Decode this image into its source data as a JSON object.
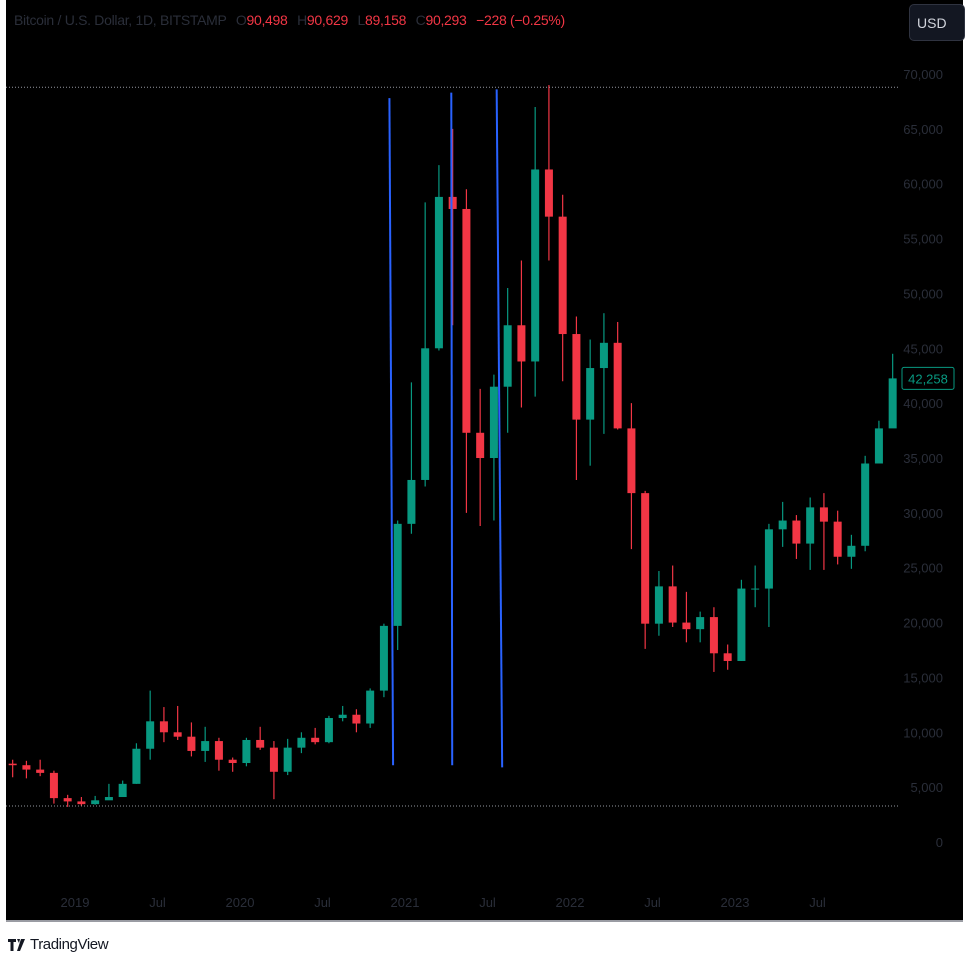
{
  "legend": {
    "symbol": "Bitcoin / U.S. Dollar, 1D, BITSTAMP",
    "o_label": "O",
    "open": "90,498",
    "h_label": "H",
    "high": "90,629",
    "l_label": "L",
    "low": "89,158",
    "c_label": "C",
    "close": "90,293",
    "change": "−228 (−0.25%)"
  },
  "currency_button": "USD",
  "brand": "TradingView",
  "colors": {
    "up": "#089981",
    "down": "#f23645",
    "drawing": "#2962ff",
    "background": "#000000"
  },
  "chart_data": {
    "type": "candlestick",
    "title": "Bitcoin / U.S. Dollar, 1D, BITSTAMP",
    "ylim": [
      0,
      70000
    ],
    "y_ticks": [
      "0",
      "5,000",
      "10,000",
      "15,000",
      "20,000",
      "25,000",
      "30,000",
      "35,000",
      "40,000",
      "45,000",
      "50,000",
      "55,000",
      "60,000",
      "65,000",
      "70,000"
    ],
    "x_ticks": [
      "2019",
      "Jul",
      "2020",
      "Jul",
      "2021",
      "Jul",
      "2022",
      "Jul",
      "2023",
      "Jul"
    ],
    "last_price": "42,258",
    "monthly_close": [
      [
        "2018-08",
        7000
      ],
      [
        "2018-09",
        6600
      ],
      [
        "2018-10",
        6300
      ],
      [
        "2018-11",
        4000
      ],
      [
        "2018-12",
        3700
      ],
      [
        "2019-01",
        3450
      ],
      [
        "2019-02",
        3800
      ],
      [
        "2019-03",
        4100
      ],
      [
        "2019-04",
        5300
      ],
      [
        "2019-05",
        8500
      ],
      [
        "2019-06",
        11000
      ],
      [
        "2019-07",
        10000
      ],
      [
        "2019-08",
        9600
      ],
      [
        "2019-09",
        8300
      ],
      [
        "2019-10",
        9200
      ],
      [
        "2019-11",
        7500
      ],
      [
        "2019-12",
        7200
      ],
      [
        "2020-01",
        9300
      ],
      [
        "2020-02",
        8600
      ],
      [
        "2020-03",
        6400
      ],
      [
        "2020-04",
        8600
      ],
      [
        "2020-05",
        9500
      ],
      [
        "2020-06",
        9100
      ],
      [
        "2020-07",
        11300
      ],
      [
        "2020-08",
        11600
      ],
      [
        "2020-09",
        10800
      ],
      [
        "2020-10",
        13800
      ],
      [
        "2020-11",
        19700
      ],
      [
        "2020-12",
        29000
      ],
      [
        "2021-01",
        33000
      ],
      [
        "2021-02",
        45000
      ],
      [
        "2021-03",
        58800
      ],
      [
        "2021-04",
        57700
      ],
      [
        "2021-05",
        37300
      ],
      [
        "2021-06",
        35000
      ],
      [
        "2021-07",
        41500
      ],
      [
        "2021-08",
        47100
      ],
      [
        "2021-09",
        43800
      ],
      [
        "2021-10",
        61300
      ],
      [
        "2021-11",
        57000
      ],
      [
        "2021-12",
        46300
      ],
      [
        "2022-01",
        38500
      ],
      [
        "2022-02",
        43200
      ],
      [
        "2022-03",
        45500
      ],
      [
        "2022-04",
        37700
      ],
      [
        "2022-05",
        31800
      ],
      [
        "2022-06",
        19900
      ],
      [
        "2022-07",
        23300
      ],
      [
        "2022-08",
        20000
      ],
      [
        "2022-09",
        19400
      ],
      [
        "2022-10",
        20500
      ],
      [
        "2022-11",
        17200
      ],
      [
        "2022-12",
        16500
      ],
      [
        "2023-01",
        23100
      ],
      [
        "2023-02",
        23100
      ],
      [
        "2023-03",
        28500
      ],
      [
        "2023-04",
        29300
      ],
      [
        "2023-05",
        27200
      ],
      [
        "2023-06",
        30500
      ],
      [
        "2023-07",
        29200
      ],
      [
        "2023-08",
        26000
      ],
      [
        "2023-09",
        27000
      ],
      [
        "2023-10",
        34500
      ],
      [
        "2023-11",
        37700
      ],
      [
        "2023-12",
        42258
      ]
    ],
    "monthly_high": [
      7500,
      7400,
      7500,
      6500,
      4300,
      4100,
      4200,
      5300,
      5600,
      9000,
      13800,
      12300,
      12400,
      10900,
      10500,
      9500,
      7700,
      9500,
      10500,
      9200,
      9400,
      10000,
      10400,
      11500,
      12400,
      12100,
      14000,
      19900,
      29300,
      41900,
      58300,
      61700,
      65000,
      59500,
      41300,
      42600,
      50500,
      53000,
      67000,
      69000,
      59000,
      47900,
      45800,
      48200,
      47400,
      40000,
      32000,
      24700,
      25200,
      22800,
      21000,
      21400,
      18000,
      23900,
      25200,
      29000,
      31000,
      29800,
      31400,
      31800,
      30200,
      28000,
      35200,
      38400,
      44500
    ],
    "monthly_low": [
      5900,
      5800,
      6000,
      3500,
      3200,
      3300,
      3400,
      3900,
      5000,
      5300,
      7500,
      9100,
      9300,
      7800,
      7300,
      6500,
      6400,
      6900,
      8400,
      3900,
      6100,
      8100,
      8900,
      9000,
      11000,
      10000,
      10400,
      13200,
      17500,
      28100,
      32400,
      44800,
      47100,
      30000,
      28800,
      29300,
      37300,
      39600,
      40600,
      53000,
      42000,
      33000,
      34300,
      37200,
      37600,
      26700,
      17600,
      18800,
      19600,
      18200,
      18200,
      15500,
      15700,
      16500,
      21400,
      19600,
      26900,
      25800,
      24800,
      24800,
      25300,
      24900,
      26500,
      34800,
      40200
    ],
    "drawings": [
      {
        "type": "trend-line",
        "from": [
          "2020-11-27",
          67800
        ],
        "to": [
          "2020-12-05",
          7000
        ]
      },
      {
        "type": "trend-line",
        "from": [
          "2021-04-12",
          68300
        ],
        "to": [
          "2021-04-14",
          7000
        ]
      },
      {
        "type": "trend-line",
        "from": [
          "2021-07-21",
          68600
        ],
        "to": [
          "2021-08-03",
          6800
        ]
      },
      {
        "type": "horizontal-line",
        "price": 68800,
        "style": "dotted"
      },
      {
        "type": "horizontal-line",
        "price": 3280,
        "style": "dotted"
      }
    ]
  }
}
